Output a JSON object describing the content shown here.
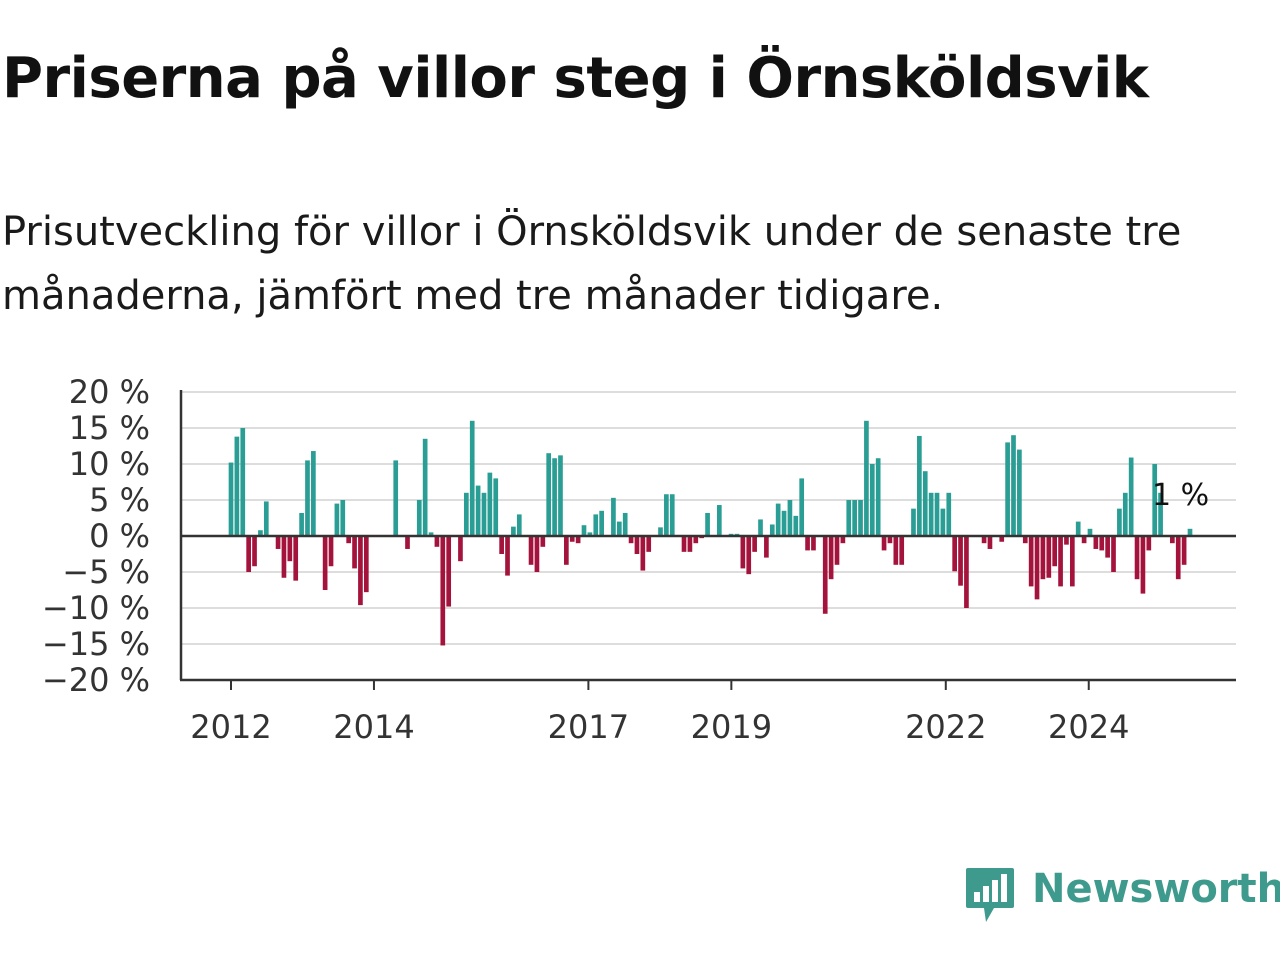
{
  "title": "Priserna på villor steg i Örnsköldsvik",
  "subtitle": "Prisutveckling för villor i Örnsköldsvik under de senaste tre månaderna, jämfört med tre månader tidigare.",
  "logo": {
    "text": "Newsworthy",
    "icon": "newsworthy-bar-chart-bubble-icon"
  },
  "colors": {
    "positive": "#2a9d94",
    "negative": "#a4133c",
    "grid": "#dddddd",
    "axis": "#333333",
    "brand": "#3f9a8e"
  },
  "chart_data": {
    "type": "bar",
    "title": "Priserna på villor steg i Örnsköldsvik",
    "subtitle": "Prisutveckling för villor i Örnsköldsvik under de senaste tre månaderna, jämfört med tre månader tidigare.",
    "xlabel": "",
    "ylabel": "",
    "unit": "%",
    "x_start": "2012-01",
    "x_end": "2025-06",
    "ylim": [
      -20,
      20
    ],
    "yticks": [
      20,
      15,
      10,
      5,
      0,
      -5,
      -10,
      -15,
      -20
    ],
    "ytick_labels": [
      "20 %",
      "15 %",
      "10 %",
      "5 %",
      "0 %",
      "−5 %",
      "−10 %",
      "−15 %",
      "−20 %"
    ],
    "xticks": [
      "2012",
      "2014",
      "2017",
      "2019",
      "2022",
      "2024"
    ],
    "grid": true,
    "legend": "none",
    "last_label": "1 %",
    "values": [
      10.2,
      13.8,
      15,
      -5,
      -4.2,
      0.8,
      4.8,
      0,
      -1.8,
      -5.8,
      -3.5,
      -6.2,
      3.2,
      10.5,
      11.8,
      0,
      -7.5,
      -4.2,
      4.5,
      5,
      -1,
      -4.5,
      -9.6,
      -7.8,
      0,
      0,
      0,
      0,
      10.5,
      0,
      -1.8,
      0,
      5,
      13.5,
      0.5,
      -1.5,
      -15.2,
      -9.8,
      0,
      -3.5,
      6,
      16,
      7,
      6,
      8.8,
      8,
      -2.5,
      -5.5,
      1.3,
      3,
      0,
      -4,
      -5,
      -1.5,
      11.5,
      10.8,
      11.2,
      -4,
      -0.8,
      -1,
      1.5,
      0.5,
      3,
      3.5,
      0,
      5.3,
      2,
      3.2,
      -1,
      -2.5,
      -4.8,
      -2.2,
      0,
      1.2,
      5.8,
      5.8,
      0,
      -2.2,
      -2.2,
      -1,
      -0.3,
      3.2,
      0,
      4.3,
      0,
      0.3,
      0.3,
      -4.5,
      -5.3,
      -2.2,
      2.3,
      -3,
      1.6,
      4.5,
      3.5,
      5,
      2.8,
      8,
      -2,
      -2,
      0,
      -10.8,
      -6,
      -4,
      -1,
      5,
      5,
      5,
      16,
      10,
      10.8,
      -2,
      -1,
      -4,
      -4,
      0,
      3.8,
      13.9,
      9,
      6,
      6,
      3.8,
      6,
      -4.9,
      -6.9,
      -10,
      0,
      0,
      -1,
      -1.8,
      0,
      -0.8,
      13,
      14,
      12,
      -1,
      -7,
      -8.8,
      -6,
      -5.8,
      -4.2,
      -7,
      -1.2,
      -7,
      2,
      -1,
      1,
      -1.8,
      -2,
      -3,
      -5,
      3.8,
      6,
      10.9,
      -6,
      -8,
      -2,
      10,
      6,
      0,
      -1,
      -6,
      -4,
      1
    ]
  }
}
